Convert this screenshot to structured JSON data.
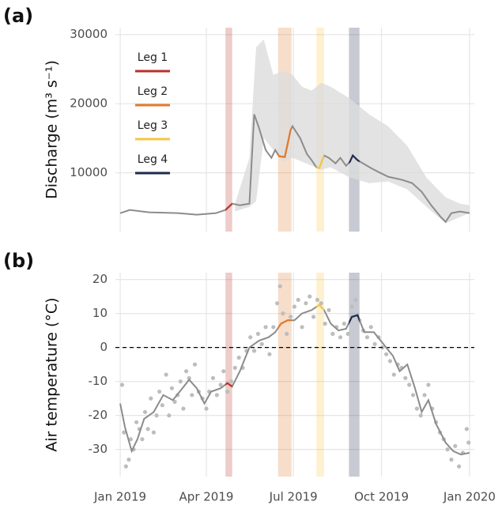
{
  "chart_data": [
    {
      "type": "line",
      "panel_label": "(a)",
      "y_label": "Discharge (m³ s⁻¹)",
      "xlim": [
        -5,
        370
      ],
      "ylim": [
        1500,
        31000
      ],
      "xticks": [
        0,
        90,
        181,
        273,
        365
      ],
      "yticks": [
        10000,
        20000,
        30000
      ],
      "grid": true,
      "legend": "top-left",
      "legs": [
        {
          "name": "Leg 1",
          "color": "#b8322a",
          "start": 110,
          "end": 117
        },
        {
          "name": "Leg 2",
          "color": "#e07a2c",
          "start": 165,
          "end": 179
        },
        {
          "name": "Leg 3",
          "color": "#f6c744",
          "start": 205,
          "end": 213
        },
        {
          "name": "Leg 4",
          "color": "#1e2b4d",
          "start": 239,
          "end": 250
        }
      ],
      "band": {
        "color": "#dcdcdc",
        "x": [
          120,
          135,
          142,
          150,
          160,
          170,
          180,
          190,
          200,
          210,
          220,
          240,
          260,
          280,
          300,
          320,
          340,
          355,
          365
        ],
        "lower": [
          4400,
          5090,
          5890,
          15030,
          13300,
          11600,
          12170,
          11600,
          11030,
          10460,
          10800,
          9310,
          8510,
          8740,
          7600,
          5090,
          2690,
          3600,
          4170
        ],
        "upper": [
          5540,
          12170,
          28170,
          29300,
          24170,
          24740,
          24170,
          22460,
          21890,
          23030,
          22460,
          20740,
          18460,
          16740,
          13890,
          9310,
          6460,
          5540,
          5300
        ]
      },
      "line": {
        "color": "#8c8c8c",
        "x": [
          0,
          10,
          30,
          60,
          80,
          100,
          110,
          117,
          125,
          135,
          140,
          145,
          152,
          158,
          162,
          166,
          172,
          178,
          180,
          188,
          195,
          200,
          205,
          208,
          213,
          218,
          225,
          230,
          236,
          240,
          243,
          248,
          255,
          262,
          270,
          280,
          295,
          305,
          315,
          325,
          335,
          340,
          346,
          355,
          365
        ],
        "values": [
          4170,
          4630,
          4290,
          4170,
          3940,
          4170,
          4630,
          5540,
          5300,
          5540,
          18460,
          16500,
          13300,
          12170,
          13300,
          12400,
          12290,
          16170,
          16740,
          15030,
          12740,
          11830,
          10800,
          10690,
          12510,
          12170,
          11370,
          12170,
          11030,
          11600,
          12510,
          11830,
          11260,
          10690,
          10110,
          9430,
          8970,
          8510,
          7260,
          5300,
          3600,
          2910,
          4170,
          4400,
          4170
        ]
      }
    },
    {
      "type": "line",
      "panel_label": "(b)",
      "y_label": "Air temperature (°C)",
      "xlim": [
        -5,
        370
      ],
      "ylim": [
        -38,
        22
      ],
      "xticks": [
        {
          "value": 0,
          "label": "Jan 2019"
        },
        {
          "value": 90,
          "label": "Apr 2019"
        },
        {
          "value": 181,
          "label": "Jul 2019"
        },
        {
          "value": 273,
          "label": "Oct 2019"
        },
        {
          "value": 365,
          "label": "Jan 2020"
        }
      ],
      "yticks": [
        -30,
        -20,
        -10,
        0,
        10,
        20
      ],
      "grid": true,
      "hline": 0,
      "points": {
        "color": "#bdbdbd",
        "x": [
          2,
          4,
          6,
          9,
          11,
          14,
          17,
          20,
          23,
          26,
          29,
          32,
          35,
          38,
          41,
          44,
          48,
          51,
          54,
          57,
          60,
          63,
          66,
          69,
          72,
          75,
          78,
          82,
          86,
          90,
          93,
          97,
          101,
          105,
          108,
          112,
          116,
          120,
          124,
          128,
          132,
          136,
          140,
          144,
          148,
          152,
          156,
          160,
          164,
          167,
          170,
          174,
          178,
          182,
          186,
          190,
          194,
          198,
          202,
          206,
          210,
          214,
          218,
          222,
          226,
          230,
          234,
          238,
          242,
          246,
          250,
          254,
          258,
          262,
          266,
          270,
          274,
          278,
          282,
          286,
          290,
          294,
          298,
          302,
          306,
          310,
          314,
          318,
          322,
          326,
          330,
          334,
          338,
          342,
          346,
          350,
          354,
          358,
          362,
          364
        ],
        "values": [
          -11,
          -25,
          -35,
          -33,
          -27,
          -30,
          -22,
          -24,
          -27,
          -19,
          -24,
          -15,
          -25,
          -20,
          -13,
          -17,
          -8,
          -20,
          -12,
          -16,
          -14,
          -10,
          -18,
          -7,
          -9,
          -14,
          -5,
          -13,
          -15,
          -18,
          -13,
          -9,
          -14,
          -11,
          -7,
          -13,
          -10,
          -6,
          -3,
          -6,
          -1,
          3,
          -1,
          4,
          1,
          6,
          -2,
          6,
          13,
          18,
          10,
          4,
          9,
          12,
          14,
          6,
          13,
          15,
          9,
          14,
          13,
          7,
          11,
          4,
          6,
          3,
          7,
          4,
          12,
          14,
          8,
          5,
          3,
          6,
          1,
          3,
          0,
          -2,
          -4,
          -8,
          -5,
          -6,
          -9,
          -11,
          -14,
          -18,
          -20,
          -14,
          -11,
          -18,
          -22,
          -25,
          -27,
          -30,
          -33,
          -29,
          -35,
          -31,
          -24,
          -28
        ]
      },
      "line": {
        "color": "#8c8c8c",
        "x": [
          0,
          5,
          12,
          18,
          25,
          35,
          45,
          55,
          65,
          72,
          80,
          88,
          95,
          105,
          112,
          117,
          125,
          135,
          145,
          155,
          162,
          168,
          175,
          182,
          190,
          200,
          208,
          213,
          220,
          228,
          236,
          242,
          248,
          255,
          265,
          275,
          285,
          292,
          300,
          308,
          315,
          322,
          330,
          340,
          348,
          356,
          365
        ],
        "values": [
          -16.5,
          -23.5,
          -30.5,
          -27,
          -21,
          -19,
          -14,
          -15.5,
          -12,
          -9.5,
          -12,
          -16.5,
          -13,
          -12,
          -10.5,
          -11.5,
          -7,
          0,
          2,
          3,
          4.5,
          7,
          8,
          8,
          10,
          11,
          12.5,
          11,
          7,
          5,
          5.5,
          9,
          9.5,
          4.5,
          4.5,
          1,
          -2.5,
          -7,
          -5,
          -12,
          -19,
          -15.5,
          -22.5,
          -28,
          -30.5,
          -31.5,
          -31
        ]
      }
    }
  ]
}
